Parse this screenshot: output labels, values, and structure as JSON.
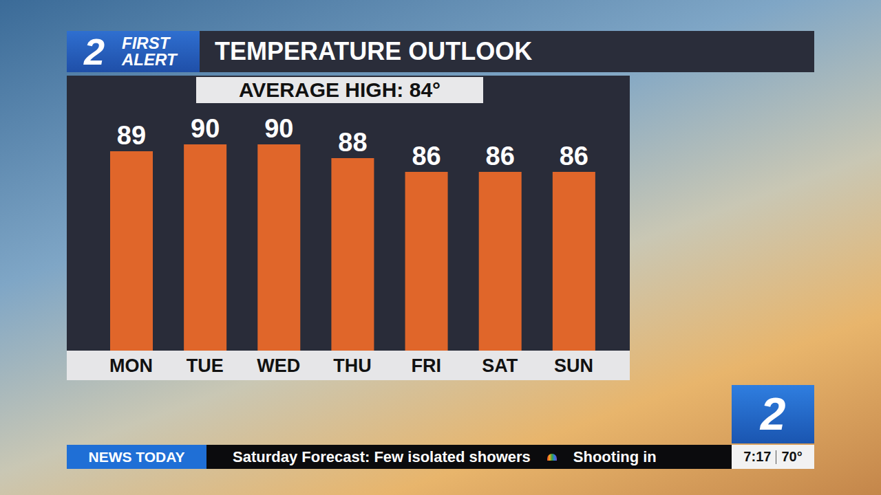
{
  "chart_data": {
    "type": "bar",
    "title": "TEMPERATURE OUTLOOK",
    "subtitle": "AVERAGE HIGH: 84°",
    "categories": [
      "MON",
      "TUE",
      "WED",
      "THU",
      "FRI",
      "SAT",
      "SUN"
    ],
    "values": [
      89,
      90,
      90,
      88,
      86,
      86,
      86
    ],
    "color": "#e0662a",
    "ylim": [
      60,
      100
    ],
    "yticks": [
      60,
      100
    ],
    "grid": false,
    "data_labels": true,
    "tick_labels": "x"
  },
  "logo": {
    "number": "2",
    "text": [
      "FIRST",
      "ALERT"
    ]
  },
  "ticker": {
    "label": "NEWS TODAY",
    "items": [
      "Saturday Forecast: Few isolated showers",
      "Shooting in"
    ],
    "time": "7:17",
    "temperature": "70°"
  }
}
